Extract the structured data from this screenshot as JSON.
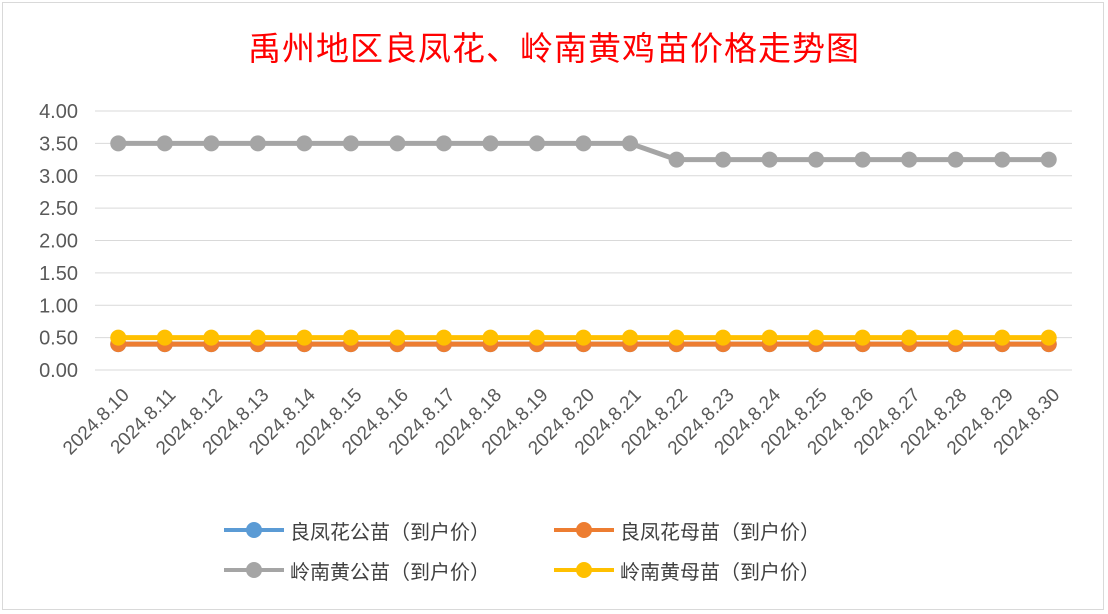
{
  "chart_data": {
    "type": "line",
    "title": "禹州地区良凤花、岭南黄鸡苗价格走势图",
    "xlabel": "",
    "ylabel": "",
    "ylim": [
      0,
      4
    ],
    "yticks": [
      "0.00",
      "0.50",
      "1.00",
      "1.50",
      "2.00",
      "2.50",
      "3.00",
      "3.50",
      "4.00"
    ],
    "grid": true,
    "legend_position": "bottom",
    "categories": [
      "2024.8.10",
      "2024.8.11",
      "2024.8.12",
      "2024.8.13",
      "2024.8.14",
      "2024.8.15",
      "2024.8.16",
      "2024.8.17",
      "2024.8.18",
      "2024.8.19",
      "2024.8.20",
      "2024.8.21",
      "2024.8.22",
      "2024.8.23",
      "2024.8.24",
      "2024.8.25",
      "2024.8.26",
      "2024.8.27",
      "2024.8.28",
      "2024.8.29",
      "2024.8.30"
    ],
    "series": [
      {
        "name": "良凤花公苗（到户价）",
        "color": "#5b9bd5",
        "values": [
          0.4,
          0.4,
          0.4,
          0.4,
          0.4,
          0.4,
          0.4,
          0.4,
          0.4,
          0.4,
          0.4,
          0.4,
          0.4,
          0.4,
          0.4,
          0.4,
          0.4,
          0.4,
          0.4,
          0.4,
          0.4
        ]
      },
      {
        "name": "良凤花母苗（到户价）",
        "color": "#ed7d31",
        "values": [
          0.4,
          0.4,
          0.4,
          0.4,
          0.4,
          0.4,
          0.4,
          0.4,
          0.4,
          0.4,
          0.4,
          0.4,
          0.4,
          0.4,
          0.4,
          0.4,
          0.4,
          0.4,
          0.4,
          0.4,
          0.4
        ]
      },
      {
        "name": "岭南黄公苗（到户价）",
        "color": "#a5a5a5",
        "values": [
          3.5,
          3.5,
          3.5,
          3.5,
          3.5,
          3.5,
          3.5,
          3.5,
          3.5,
          3.5,
          3.5,
          3.5,
          3.25,
          3.25,
          3.25,
          3.25,
          3.25,
          3.25,
          3.25,
          3.25,
          3.25
        ]
      },
      {
        "name": "岭南黄母苗（到户价）",
        "color": "#ffc000",
        "values": [
          0.5,
          0.5,
          0.5,
          0.5,
          0.5,
          0.5,
          0.5,
          0.5,
          0.5,
          0.5,
          0.5,
          0.5,
          0.5,
          0.5,
          0.5,
          0.5,
          0.5,
          0.5,
          0.5,
          0.5,
          0.5
        ]
      }
    ]
  }
}
